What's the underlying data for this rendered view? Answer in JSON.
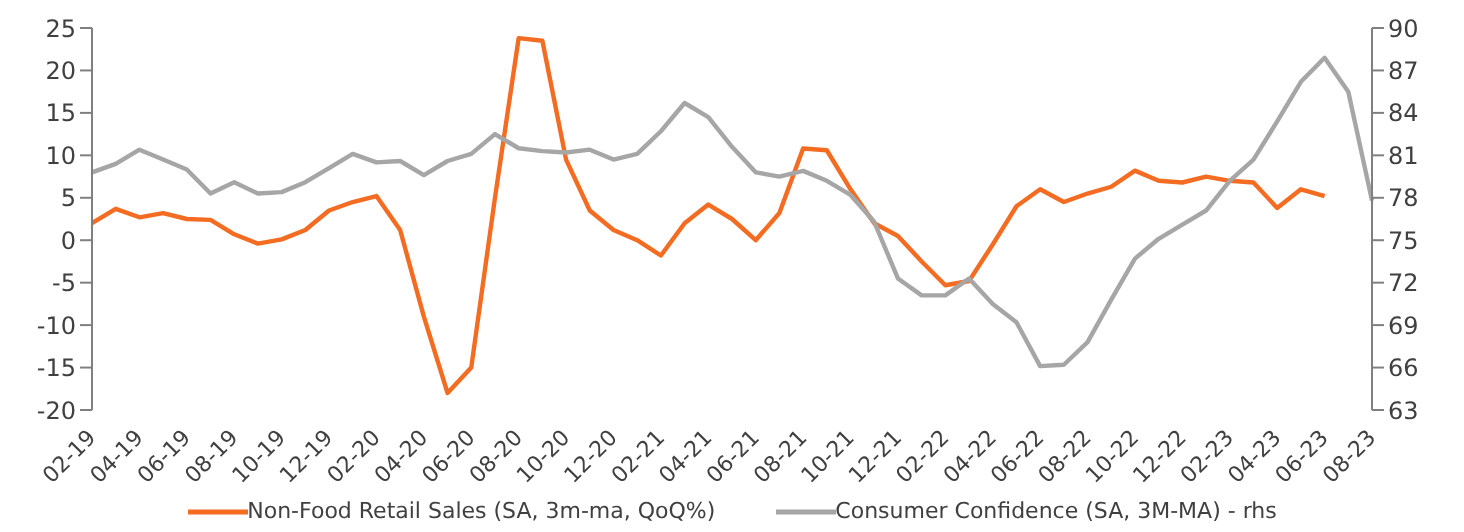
{
  "chart_data": {
    "type": "line",
    "categories": [
      "02-19",
      null,
      "04-19",
      null,
      "06-19",
      null,
      "08-19",
      null,
      "10-19",
      null,
      "12-19",
      null,
      "02-20",
      null,
      "04-20",
      null,
      "06-20",
      null,
      "08-20",
      null,
      "10-20",
      null,
      "12-20",
      null,
      "02-21",
      null,
      "04-21",
      null,
      "06-21",
      null,
      "08-21",
      null,
      "10-21",
      null,
      "12-21",
      null,
      "02-22",
      null,
      "04-22",
      null,
      "06-22",
      null,
      "08-22",
      null,
      "10-22",
      null,
      "12-22",
      null,
      "02-23",
      null,
      "04-23",
      null,
      "06-23",
      null,
      "08-23"
    ],
    "series": [
      {
        "name": "Non-Food Retail Sales (SA, 3m-ma, QoQ%)",
        "color": "#f36c21",
        "values": [
          2,
          3.7,
          2.7,
          3.2,
          2.5,
          2.4,
          0.7,
          -0.4,
          0.1,
          1.2,
          3.5,
          4.5,
          5.2,
          1.2,
          -9,
          -18,
          -15,
          5,
          23.8,
          23.5,
          9.5,
          3.5,
          1.2,
          0,
          -1.8,
          2,
          4.2,
          2.5,
          0,
          3.2,
          10.8,
          10.6,
          6,
          2,
          0.5,
          -2.5,
          -5.3,
          -4.8,
          -0.5,
          4,
          6,
          4.5,
          5.5,
          6.3,
          8.2,
          7,
          6.8,
          7.5,
          7,
          6.8,
          3.8,
          6,
          5.2,
          null,
          null
        ]
      },
      {
        "name": "Consumer Confidence (SA, 3M-MA) - rhs",
        "color": "#a6a6a6",
        "axis": "y2",
        "values": [
          79.8,
          80.4,
          81.4,
          80.7,
          80,
          78.3,
          79.1,
          78.3,
          78.4,
          79.1,
          80.1,
          81.1,
          80.5,
          80.6,
          79.6,
          80.6,
          81.1,
          82.5,
          81.5,
          81.3,
          81.2,
          81.4,
          80.7,
          81.1,
          82.7,
          84.7,
          83.7,
          81.6,
          79.8,
          79.5,
          79.9,
          79.2,
          78.2,
          76.3,
          72.3,
          71.1,
          71.1,
          72.3,
          70.5,
          69.2,
          66.1,
          66.2,
          67.8,
          70.8,
          73.7,
          75.1,
          76.1,
          77.1,
          79.2,
          80.7,
          83.4,
          86.2,
          87.9,
          85.5,
          77.8
        ]
      }
    ],
    "ylim": [
      -20,
      25
    ],
    "yticks": [
      -20,
      -15,
      -10,
      -5,
      0,
      5,
      10,
      15,
      20,
      25
    ],
    "y2lim": [
      63,
      90
    ],
    "y2ticks": [
      63,
      66,
      69,
      72,
      75,
      78,
      81,
      84,
      87,
      90
    ],
    "legend": "bottom",
    "marker": "none",
    "line_style": "solid"
  }
}
